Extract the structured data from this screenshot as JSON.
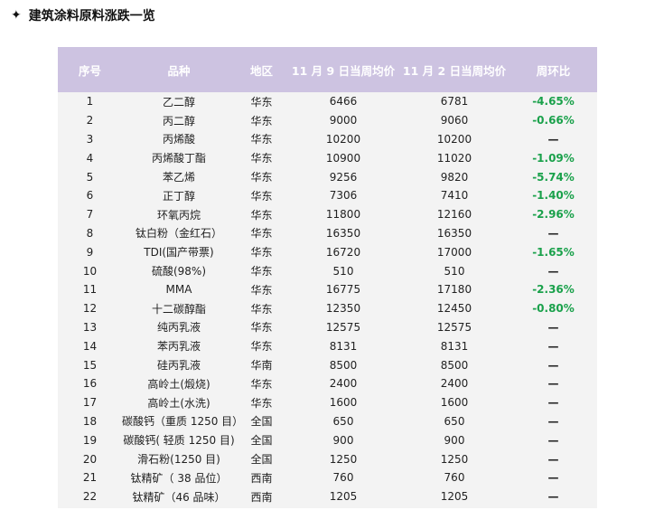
{
  "title": {
    "icon": "star-4pt-icon",
    "icon_glyph": "✦",
    "text": "建筑涂料原料涨跌一览"
  },
  "colors": {
    "header_bg": "#cdc3e1",
    "body_bg": "#f3f3f3",
    "down": "#1aa14b"
  },
  "table": {
    "headers": [
      "序号",
      "品种",
      "地区",
      "11 月 9 日当周均价",
      "11 月 2 日当周均价",
      "周环比"
    ],
    "rows": [
      {
        "no": "1",
        "name": "乙二醇",
        "region": "华东",
        "nov9": "6466",
        "nov2": "6781",
        "change": "-4.65%",
        "dir": "down"
      },
      {
        "no": "2",
        "name": "丙二醇",
        "region": "华东",
        "nov9": "9000",
        "nov2": "9060",
        "change": "-0.66%",
        "dir": "down"
      },
      {
        "no": "3",
        "name": "丙烯酸",
        "region": "华东",
        "nov9": "10200",
        "nov2": "10200",
        "change": "—",
        "dir": "flat"
      },
      {
        "no": "4",
        "name": "丙烯酸丁酯",
        "region": "华东",
        "nov9": "10900",
        "nov2": "11020",
        "change": "-1.09%",
        "dir": "down"
      },
      {
        "no": "5",
        "name": "苯乙烯",
        "region": "华东",
        "nov9": "9256",
        "nov2": "9820",
        "change": "-5.74%",
        "dir": "down"
      },
      {
        "no": "6",
        "name": "正丁醇",
        "region": "华东",
        "nov9": "7306",
        "nov2": "7410",
        "change": "-1.40%",
        "dir": "down"
      },
      {
        "no": "7",
        "name": "环氧丙烷",
        "region": "华东",
        "nov9": "11800",
        "nov2": "12160",
        "change": "-2.96%",
        "dir": "down"
      },
      {
        "no": "8",
        "name": "钛白粉（金红石）",
        "region": "华东",
        "nov9": "16350",
        "nov2": "16350",
        "change": "—",
        "dir": "flat"
      },
      {
        "no": "9",
        "name": "TDI(国产带票)",
        "region": "华东",
        "nov9": "16720",
        "nov2": "17000",
        "change": "-1.65%",
        "dir": "down"
      },
      {
        "no": "10",
        "name": "硫酸(98%)",
        "region": "华东",
        "nov9": "510",
        "nov2": "510",
        "change": "—",
        "dir": "flat"
      },
      {
        "no": "11",
        "name": "MMA",
        "region": "华东",
        "nov9": "16775",
        "nov2": "17180",
        "change": "-2.36%",
        "dir": "down"
      },
      {
        "no": "12",
        "name": "十二碳醇酯",
        "region": "华东",
        "nov9": "12350",
        "nov2": "12450",
        "change": "-0.80%",
        "dir": "down"
      },
      {
        "no": "13",
        "name": "纯丙乳液",
        "region": "华东",
        "nov9": "12575",
        "nov2": "12575",
        "change": "—",
        "dir": "flat"
      },
      {
        "no": "14",
        "name": "苯丙乳液",
        "region": "华东",
        "nov9": "8131",
        "nov2": "8131",
        "change": "—",
        "dir": "flat"
      },
      {
        "no": "15",
        "name": "硅丙乳液",
        "region": "华南",
        "nov9": "8500",
        "nov2": "8500",
        "change": "—",
        "dir": "flat"
      },
      {
        "no": "16",
        "name": "高岭土(煅烧)",
        "region": "华东",
        "nov9": "2400",
        "nov2": "2400",
        "change": "—",
        "dir": "flat"
      },
      {
        "no": "17",
        "name": "高岭土(水洗)",
        "region": "华东",
        "nov9": "1600",
        "nov2": "1600",
        "change": "—",
        "dir": "flat"
      },
      {
        "no": "18",
        "name": "碳酸钙（重质 1250 目）",
        "region": "全国",
        "nov9": "650",
        "nov2": "650",
        "change": "—",
        "dir": "flat"
      },
      {
        "no": "19",
        "name": "碳酸钙( 轻质 1250 目)",
        "region": "全国",
        "nov9": "900",
        "nov2": "900",
        "change": "—",
        "dir": "flat"
      },
      {
        "no": "20",
        "name": "滑石粉(1250 目)",
        "region": "全国",
        "nov9": "1250",
        "nov2": "1250",
        "change": "—",
        "dir": "flat"
      },
      {
        "no": "21",
        "name": "钛精矿（ 38 品位）",
        "region": "西南",
        "nov9": "760",
        "nov2": "760",
        "change": "—",
        "dir": "flat"
      },
      {
        "no": "22",
        "name": "钛精矿（46 品味）",
        "region": "西南",
        "nov9": "1205",
        "nov2": "1205",
        "change": "—",
        "dir": "flat"
      }
    ]
  }
}
